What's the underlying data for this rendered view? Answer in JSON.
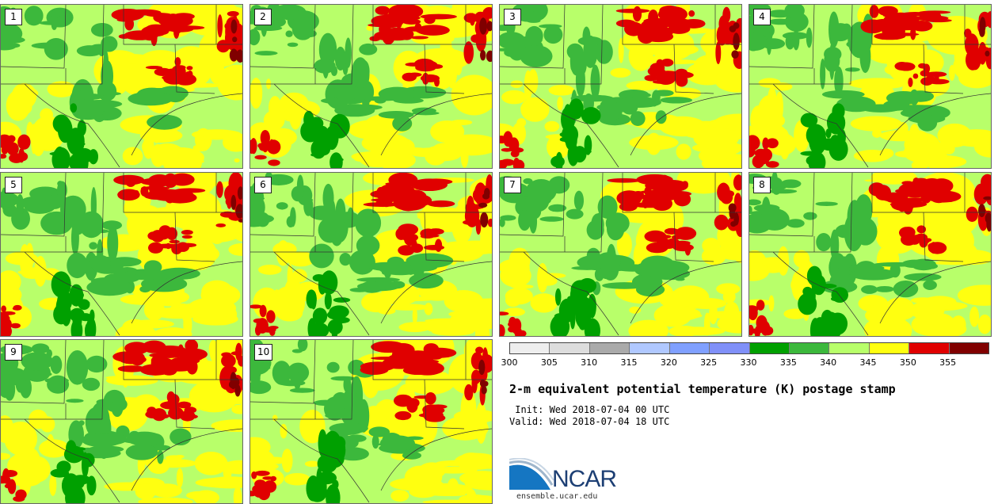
{
  "panels": [
    {
      "label": "1"
    },
    {
      "label": "2"
    },
    {
      "label": "3"
    },
    {
      "label": "4"
    },
    {
      "label": "5"
    },
    {
      "label": "6"
    },
    {
      "label": "7"
    },
    {
      "label": "8"
    },
    {
      "label": "9"
    },
    {
      "label": "10"
    }
  ],
  "colorbar": {
    "ticks": [
      "300",
      "305",
      "310",
      "315",
      "320",
      "325",
      "330",
      "335",
      "340",
      "345",
      "350",
      "355"
    ],
    "colors": [
      "#eeeeee",
      "#dddddd",
      "#aaaaaa",
      "#b0c8ff",
      "#80a0ff",
      "#8090f8",
      "#00a000",
      "#3cb83c",
      "#b8ff6a",
      "#ffff10",
      "#e00000",
      "#800000"
    ]
  },
  "title": "2-m equivalent potential temperature (K) postage stamp",
  "init": " Init: Wed 2018-07-04 00 UTC",
  "valid": "Valid: Wed 2018-07-04 18 UTC",
  "logo": {
    "text": "NCAR",
    "url": "ensemble.ucar.edu"
  }
}
